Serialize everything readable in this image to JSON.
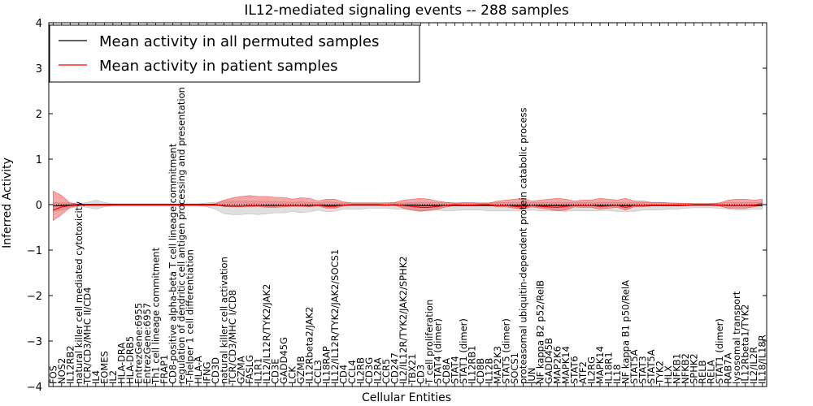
{
  "chart_data": {
    "type": "line",
    "title": "IL12-mediated signaling events -- 288 samples",
    "xlabel": "Cellular Entities",
    "ylabel": "Inferred Activity",
    "ylim": [
      -4,
      4
    ],
    "yticks": [
      "−4",
      "−3",
      "−2",
      "−1",
      "0",
      "1",
      "2",
      "3",
      "4"
    ],
    "grid": false,
    "legend_position": "top-left",
    "categories": [
      "FOS",
      "NOS2",
      "IL12RB2",
      "natural killer cell mediated cytotoxicity",
      "TCR/CD3/MHC II/CD4",
      "IL4",
      "EOMES",
      "IL2",
      "HLA-DRA",
      "HLA-DRB5",
      "EntrezGene:6955",
      "EntrezGene:6957",
      "Th1 cell lineage commitment",
      "FRAP1",
      "CD8-positive alpha-beta T cell lineage commitment",
      "regulation of dendritic cell antigen processing and presentation",
      "T-helper 1 cell differentiation",
      "HLA-A",
      "IFNG",
      "CD3D",
      "natural killer cell activation",
      "TCR/CD3/MHC I/CD8",
      "GZMA",
      "FASLG",
      "IL1R1",
      "IL12/IL12R/TYK2/JAK2",
      "CD3E",
      "GADD45G",
      "LCK",
      "GZMB",
      "IL12Rbeta2/JAK2",
      "CCL3",
      "IL18RAP",
      "IL12/IL12R/TYK2/JAK2/SOCS1",
      "CD4",
      "CCL4",
      "IL2RB",
      "CD3G",
      "IL2RA",
      "CCR5",
      "CD247",
      "IL2/IL12R/TYK2/JAK2/SPHK2",
      "TBX21",
      "CD3",
      "T cell proliferation",
      "STAT4 (dimer)",
      "CD8A",
      "STAT4",
      "STAT1 (dimer)",
      "IL12RB1",
      "CD8B",
      "IL12B",
      "MAP2K3",
      "STAT5 (dimer)",
      "SOCS1",
      "proteasomal ubiquitin-dependent protein catabolic process",
      "JUN",
      "NF kappa B2 p52/RelB",
      "GADD45B",
      "MAP2K6",
      "MAPK14",
      "STAT6",
      "ATF2",
      "IL2RG",
      "MAPK14",
      "IL18R1",
      "IL18",
      "NF kappa B1 p50/RelA",
      "STAT5A",
      "STAT3",
      "STAT5A",
      "TYK2",
      "HLX",
      "NFKB1",
      "NFKB2",
      "SPHK2",
      "RELB",
      "RELA",
      "STAT1 (dimer)",
      "RAB7A",
      "lysosomal transport",
      "IL12Rbeta1/TYK2",
      "IL2/IL2R",
      "IL18/IL18R"
    ],
    "series": [
      {
        "name": "Mean activity in all permuted samples",
        "color": "#000000",
        "values": [
          -0.03,
          -0.02,
          -0.01,
          0,
          0,
          0,
          0,
          0,
          0,
          0,
          0,
          0,
          0,
          0,
          0,
          0,
          0,
          0,
          0,
          0,
          -0.03,
          -0.03,
          -0.03,
          -0.02,
          -0.02,
          -0.02,
          -0.02,
          -0.02,
          -0.02,
          -0.02,
          -0.02,
          -0.01,
          -0.02,
          -0.02,
          -0.01,
          -0.01,
          -0.01,
          -0.01,
          -0.01,
          -0.01,
          -0.01,
          -0.01,
          -0.01,
          -0.02,
          -0.02,
          -0.02,
          -0.02,
          -0.02,
          -0.02,
          -0.02,
          -0.02,
          -0.02,
          -0.02,
          -0.02,
          -0.02,
          -0.02,
          -0.02,
          -0.02,
          -0.02,
          -0.02,
          -0.02,
          -0.02,
          -0.02,
          -0.02,
          -0.02,
          -0.02,
          -0.02,
          -0.02,
          -0.02,
          -0.02,
          -0.02,
          -0.02,
          -0.02,
          -0.02,
          -0.01,
          -0.01,
          -0.01,
          -0.01,
          -0.01,
          -0.02,
          -0.02,
          -0.02,
          -0.02,
          -0.02
        ],
        "band_lower": [
          -0.15,
          -0.12,
          -0.08,
          -0.04,
          -0.06,
          -0.1,
          -0.05,
          -0.02,
          -0.02,
          -0.02,
          -0.02,
          -0.02,
          -0.02,
          -0.02,
          -0.02,
          -0.02,
          -0.02,
          -0.02,
          -0.05,
          -0.1,
          -0.2,
          -0.22,
          -0.22,
          -0.2,
          -0.22,
          -0.2,
          -0.18,
          -0.18,
          -0.15,
          -0.18,
          -0.16,
          -0.12,
          -0.16,
          -0.15,
          -0.1,
          -0.1,
          -0.1,
          -0.08,
          -0.08,
          -0.08,
          -0.1,
          -0.1,
          -0.12,
          -0.14,
          -0.14,
          -0.12,
          -0.14,
          -0.13,
          -0.12,
          -0.12,
          -0.12,
          -0.14,
          -0.14,
          -0.14,
          -0.14,
          -0.14,
          -0.12,
          -0.14,
          -0.14,
          -0.13,
          -0.15,
          -0.13,
          -0.14,
          -0.14,
          -0.13,
          -0.13,
          -0.15,
          -0.15,
          -0.15,
          -0.12,
          -0.12,
          -0.12,
          -0.1,
          -0.1,
          -0.08,
          -0.07,
          -0.07,
          -0.07,
          -0.08,
          -0.1,
          -0.12,
          -0.12,
          -0.1,
          -0.1
        ],
        "band_upper": [
          0.05,
          0.04,
          0.04,
          0.02,
          0.05,
          0.1,
          0.05,
          0.02,
          0.02,
          0.02,
          0.02,
          0.02,
          0.02,
          0.02,
          0.02,
          0.02,
          0.02,
          0.02,
          0.04,
          0.05,
          0.08,
          0.08,
          0.08,
          0.08,
          0.08,
          0.08,
          0.06,
          0.06,
          0.05,
          0.06,
          0.05,
          0.04,
          0.06,
          0.05,
          0.04,
          0.04,
          0.04,
          0.04,
          0.04,
          0.04,
          0.04,
          0.04,
          0.05,
          0.05,
          0.05,
          0.05,
          0.05,
          0.05,
          0.05,
          0.05,
          0.05,
          0.05,
          0.05,
          0.05,
          0.05,
          0.05,
          0.05,
          0.05,
          0.05,
          0.05,
          0.05,
          0.05,
          0.05,
          0.05,
          0.05,
          0.05,
          0.05,
          0.05,
          0.05,
          0.05,
          0.05,
          0.05,
          0.04,
          0.04,
          0.03,
          0.03,
          0.03,
          0.03,
          0.04,
          0.05,
          0.05,
          0.05,
          0.05,
          0.05
        ]
      },
      {
        "name": "Mean activity in patient samples",
        "color": "#ff0000",
        "values": [
          -0.12,
          -0.05,
          -0.02,
          -0.01,
          -0.01,
          -0.01,
          -0.01,
          -0.01,
          -0.01,
          -0.01,
          -0.01,
          -0.01,
          -0.01,
          -0.01,
          -0.01,
          -0.01,
          -0.01,
          -0.01,
          -0.01,
          -0.01,
          -0.02,
          -0.03,
          -0.03,
          -0.02,
          -0.02,
          -0.03,
          -0.03,
          -0.02,
          -0.02,
          -0.02,
          -0.03,
          -0.01,
          -0.04,
          -0.04,
          -0.01,
          0,
          0,
          0,
          0,
          -0.01,
          0,
          -0.02,
          -0.04,
          -0.06,
          -0.06,
          -0.04,
          -0.02,
          0,
          -0.01,
          -0.01,
          0,
          0,
          -0.02,
          -0.02,
          -0.04,
          -0.05,
          -0.02,
          -0.04,
          -0.05,
          -0.06,
          -0.04,
          -0.02,
          -0.02,
          -0.02,
          -0.04,
          -0.03,
          -0.02,
          -0.06,
          -0.02,
          -0.02,
          -0.01,
          -0.01,
          -0.01,
          -0.01,
          -0.01,
          0,
          0,
          0,
          -0.01,
          -0.02,
          -0.02,
          -0.02,
          -0.01,
          0.02
        ],
        "band_lower": [
          -0.35,
          -0.22,
          -0.06,
          -0.02,
          -0.02,
          -0.02,
          -0.02,
          -0.02,
          -0.02,
          -0.02,
          -0.02,
          -0.02,
          -0.02,
          -0.02,
          -0.02,
          -0.02,
          -0.02,
          -0.02,
          -0.02,
          -0.02,
          -0.04,
          -0.05,
          -0.05,
          -0.05,
          -0.04,
          -0.06,
          -0.06,
          -0.05,
          -0.04,
          -0.04,
          -0.05,
          -0.03,
          -0.08,
          -0.08,
          -0.03,
          -0.01,
          -0.01,
          -0.01,
          -0.01,
          -0.02,
          -0.01,
          -0.08,
          -0.12,
          -0.15,
          -0.12,
          -0.1,
          -0.05,
          -0.02,
          -0.03,
          -0.03,
          -0.01,
          -0.01,
          -0.05,
          -0.05,
          -0.08,
          -0.1,
          -0.05,
          -0.08,
          -0.1,
          -0.14,
          -0.12,
          -0.05,
          -0.06,
          -0.06,
          -0.1,
          -0.08,
          -0.06,
          -0.12,
          -0.05,
          -0.05,
          -0.03,
          -0.03,
          -0.03,
          -0.03,
          -0.03,
          -0.01,
          -0.01,
          -0.01,
          -0.03,
          -0.08,
          -0.08,
          -0.08,
          -0.05,
          -0.01
        ],
        "band_upper": [
          0.3,
          0.2,
          0.04,
          0.01,
          0.01,
          0.01,
          0.01,
          0.01,
          0.01,
          0.01,
          0.01,
          0.01,
          0.01,
          0.01,
          0.01,
          0.01,
          0.01,
          0.01,
          0.01,
          0.02,
          0.1,
          0.15,
          0.18,
          0.2,
          0.18,
          0.18,
          0.16,
          0.16,
          0.12,
          0.15,
          0.14,
          0.08,
          0.12,
          0.12,
          0.06,
          0.04,
          0.04,
          0.04,
          0.04,
          0.04,
          0.05,
          0.1,
          0.12,
          0.14,
          0.12,
          0.08,
          0.05,
          0.03,
          0.04,
          0.04,
          0.03,
          0.03,
          0.08,
          0.1,
          0.12,
          0.14,
          0.08,
          0.1,
          0.12,
          0.14,
          0.12,
          0.08,
          0.1,
          0.1,
          0.14,
          0.12,
          0.1,
          0.14,
          0.08,
          0.08,
          0.05,
          0.05,
          0.04,
          0.03,
          0.03,
          0.02,
          0.02,
          0.02,
          0.04,
          0.1,
          0.12,
          0.12,
          0.1,
          0.12
        ]
      }
    ]
  }
}
